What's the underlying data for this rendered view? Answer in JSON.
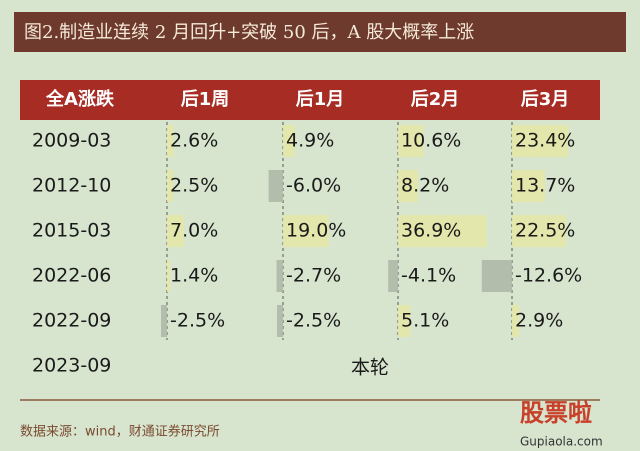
{
  "title": "图2.制造业连续 2 月回升+突破 50 后，A 股大概率上涨",
  "table": {
    "header": [
      "全A涨跌",
      "后1周",
      "后1月",
      "后2月",
      "后3月"
    ],
    "rows": [
      [
        "2009-03",
        "2.6%",
        "4.9%",
        "10.6%",
        "23.4%"
      ],
      [
        "2012-10",
        "2.5%",
        "-6.0%",
        "8.2%",
        "13.7%"
      ],
      [
        "2015-03",
        "7.0%",
        "19.0%",
        "36.9%",
        "22.5%"
      ],
      [
        "2022-06",
        "1.4%",
        "-2.7%",
        "-4.1%",
        "-12.6%"
      ],
      [
        "2022-09",
        "-2.5%",
        "-2.5%",
        "5.1%",
        "2.9%"
      ],
      [
        "2023-09",
        "本轮"
      ]
    ]
  },
  "source": "数据来源：wind，财通证券研究所",
  "watermark": {
    "brand": "股票啦",
    "site": "Gupiaola.com"
  }
}
